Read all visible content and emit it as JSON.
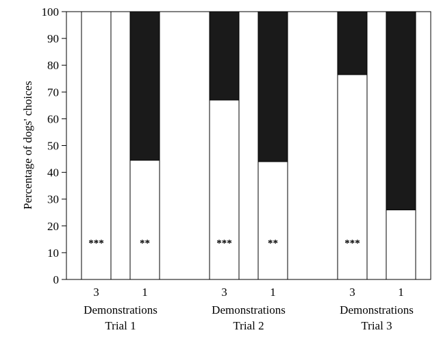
{
  "chart_data": {
    "type": "bar",
    "stacked": true,
    "ylabel": "Percentage of dogs' choices",
    "ylim": [
      0,
      100
    ],
    "yticks": [
      0,
      10,
      20,
      30,
      40,
      50,
      60,
      70,
      80,
      90,
      100
    ],
    "categories": [
      "3",
      "1",
      "3",
      "1",
      "3",
      "1"
    ],
    "groups": [
      {
        "line1": "Demonstrations",
        "line2": "Trial 1",
        "bars": [
          0,
          1
        ]
      },
      {
        "line1": "Demonstrations",
        "line2": "Trial 2",
        "bars": [
          2,
          3
        ]
      },
      {
        "line1": "Demonstrations",
        "line2": "Trial 3",
        "bars": [
          4,
          5
        ]
      }
    ],
    "series": [
      {
        "color": "#ffffff",
        "values": [
          100,
          44.5,
          67,
          44,
          76.5,
          26
        ]
      },
      {
        "color": "#1a1a1a",
        "values": [
          0,
          55.5,
          33,
          56,
          23.5,
          74
        ]
      }
    ],
    "significance": [
      "***",
      "**",
      "***",
      "**",
      "***",
      ""
    ],
    "significance_y": 14,
    "grid": false,
    "legend": "none"
  }
}
